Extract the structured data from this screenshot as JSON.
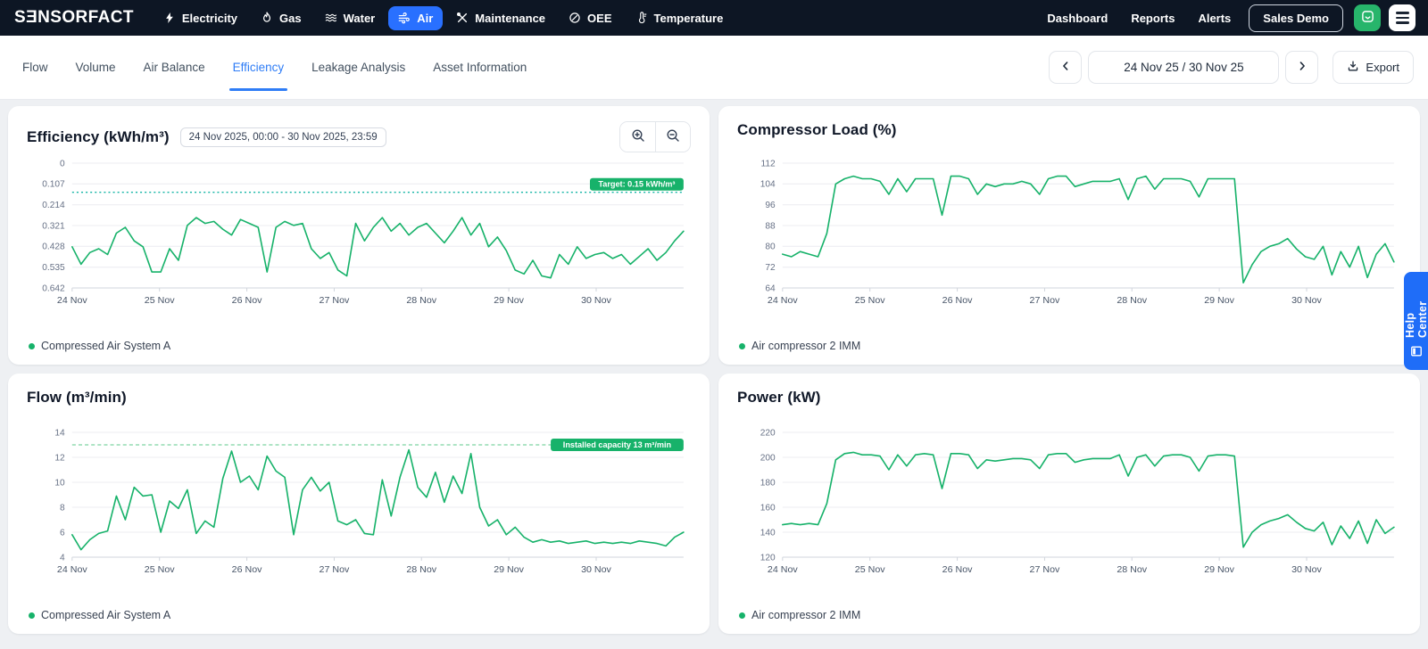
{
  "navbar": {
    "logo": "SƎNSORFACT",
    "items": [
      {
        "label": "Electricity",
        "icon": "bolt-icon",
        "active": false
      },
      {
        "label": "Gas",
        "icon": "flame-icon",
        "active": false
      },
      {
        "label": "Water",
        "icon": "waves-icon",
        "active": false
      },
      {
        "label": "Air",
        "icon": "wind-icon",
        "active": true
      },
      {
        "label": "Maintenance",
        "icon": "tools-icon",
        "active": false
      },
      {
        "label": "OEE",
        "icon": "gauge-icon",
        "active": false
      },
      {
        "label": "Temperature",
        "icon": "thermometer-icon",
        "active": false
      }
    ],
    "links": [
      "Dashboard",
      "Reports",
      "Alerts"
    ],
    "demo_button": "Sales Demo"
  },
  "tabs": [
    "Flow",
    "Volume",
    "Air Balance",
    "Efficiency",
    "Leakage Analysis",
    "Asset Information"
  ],
  "active_tab": "Efficiency",
  "toolbar": {
    "date_range": "24 Nov 25 / 30 Nov 25",
    "export_label": "Export"
  },
  "help_center": {
    "label": "Help Center"
  },
  "colors": {
    "navbar_bg": "#0d1624",
    "accent_blue": "#2970ff",
    "tab_blue": "#2f7df6",
    "series_green": "#17b26a",
    "target_teal": "#12b5a5",
    "capacity_green": "#93dcb2",
    "badge_green": "#17b26a",
    "chat_green": "#27b56b",
    "help_blue": "#1f6df8"
  },
  "chart_data": [
    {
      "type": "line",
      "title": "Efficiency (kWh/m³)",
      "time_range_label": "24 Nov 2025, 00:00 - 30 Nov 2025, 23:59",
      "ymin": 0,
      "ymax": 0.642,
      "inverted": true,
      "y_ticks": [
        0,
        0.107,
        0.214,
        0.321,
        0.428,
        0.535,
        0.642
      ],
      "x_labels": [
        "24 Nov",
        "25 Nov",
        "26 Nov",
        "27 Nov",
        "28 Nov",
        "29 Nov",
        "30 Nov"
      ],
      "x_span": 7,
      "legend_position": "bottom-left",
      "grid": true,
      "ref_line": {
        "value": 0.15,
        "label": "Target: 0.15 kWh/m³",
        "color": "#12b5a5",
        "dasharray": "2 3",
        "badge_dy": -16
      },
      "series": [
        {
          "name": "Compressed Air System A",
          "values": [
            0.43,
            0.52,
            0.46,
            0.44,
            0.47,
            0.36,
            0.33,
            0.4,
            0.43,
            0.56,
            0.56,
            0.44,
            0.5,
            0.32,
            0.28,
            0.31,
            0.3,
            0.34,
            0.37,
            0.29,
            0.31,
            0.33,
            0.56,
            0.33,
            0.3,
            0.32,
            0.31,
            0.44,
            0.49,
            0.46,
            0.55,
            0.58,
            0.31,
            0.4,
            0.33,
            0.28,
            0.35,
            0.31,
            0.37,
            0.33,
            0.31,
            0.36,
            0.41,
            0.35,
            0.28,
            0.37,
            0.31,
            0.43,
            0.38,
            0.45,
            0.55,
            0.57,
            0.5,
            0.58,
            0.59,
            0.47,
            0.52,
            0.43,
            0.49,
            0.47,
            0.46,
            0.49,
            0.47,
            0.52,
            0.48,
            0.44,
            0.5,
            0.46,
            0.4,
            0.35
          ]
        }
      ]
    },
    {
      "type": "line",
      "title": "Compressor Load (%)",
      "ymin": 64,
      "ymax": 112,
      "inverted": false,
      "y_ticks": [
        64,
        72,
        80,
        88,
        96,
        104,
        112
      ],
      "x_labels": [
        "24 Nov",
        "25 Nov",
        "26 Nov",
        "27 Nov",
        "28 Nov",
        "29 Nov",
        "30 Nov"
      ],
      "x_span": 7,
      "legend_position": "bottom-left",
      "grid": true,
      "series": [
        {
          "name": "Air compressor 2 IMM",
          "values": [
            77,
            76,
            78,
            77,
            76,
            85,
            104,
            106,
            107,
            106,
            106,
            105,
            100,
            106,
            101,
            106,
            106,
            106,
            92,
            107,
            107,
            106,
            100,
            104,
            103,
            104,
            104,
            105,
            104,
            100,
            106,
            107,
            107,
            103,
            104,
            105,
            105,
            105,
            106,
            98,
            106,
            107,
            102,
            106,
            106,
            106,
            105,
            99,
            106,
            106,
            106,
            106,
            66,
            73,
            78,
            80,
            81,
            83,
            79,
            76,
            75,
            80,
            69,
            78,
            72,
            80,
            68,
            77,
            81,
            74
          ]
        }
      ]
    },
    {
      "type": "line",
      "title": "Flow (m³/min)",
      "ymin": 4,
      "ymax": 14,
      "inverted": false,
      "y_ticks": [
        4,
        6,
        8,
        10,
        12,
        14
      ],
      "x_labels": [
        "24 Nov",
        "25 Nov",
        "26 Nov",
        "27 Nov",
        "28 Nov",
        "29 Nov",
        "30 Nov"
      ],
      "x_span": 7,
      "legend_position": "bottom-left",
      "grid": true,
      "ref_line": {
        "value": 13,
        "label": "Installed capacity 13 m³/min",
        "color": "#93dcb2",
        "dasharray": "4 3",
        "badge_dy": -7
      },
      "series": [
        {
          "name": "Compressed Air System A",
          "values": [
            5.8,
            4.6,
            5.4,
            5.9,
            6.1,
            8.9,
            7.0,
            9.6,
            8.9,
            9.0,
            6.0,
            8.5,
            7.9,
            9.4,
            5.9,
            6.9,
            6.4,
            10.3,
            12.5,
            10.0,
            10.5,
            9.4,
            12.1,
            10.9,
            10.4,
            5.8,
            9.4,
            10.4,
            9.3,
            10.0,
            6.9,
            6.6,
            7.0,
            5.9,
            5.8,
            10.2,
            7.3,
            10.4,
            12.6,
            9.6,
            8.8,
            10.8,
            8.4,
            10.5,
            9.1,
            12.3,
            8.0,
            6.5,
            7.0,
            5.8,
            6.4,
            5.6,
            5.2,
            5.4,
            5.2,
            5.3,
            5.1,
            5.2,
            5.3,
            5.1,
            5.2,
            5.1,
            5.2,
            5.1,
            5.3,
            5.2,
            5.1,
            4.9,
            5.6,
            6.0
          ]
        }
      ]
    },
    {
      "type": "line",
      "title": "Power (kW)",
      "ymin": 120,
      "ymax": 220,
      "inverted": false,
      "y_ticks": [
        120,
        140,
        160,
        180,
        200,
        220
      ],
      "x_labels": [
        "24 Nov",
        "25 Nov",
        "26 Nov",
        "27 Nov",
        "28 Nov",
        "29 Nov",
        "30 Nov"
      ],
      "x_span": 7,
      "legend_position": "bottom-left",
      "grid": true,
      "series": [
        {
          "name": "Air compressor 2 IMM",
          "values": [
            146,
            147,
            146,
            147,
            146,
            163,
            198,
            203,
            204,
            202,
            202,
            201,
            190,
            202,
            193,
            202,
            203,
            202,
            175,
            203,
            203,
            202,
            191,
            198,
            197,
            198,
            199,
            199,
            198,
            191,
            202,
            203,
            203,
            196,
            198,
            199,
            199,
            199,
            202,
            185,
            200,
            202,
            193,
            201,
            202,
            202,
            200,
            189,
            201,
            202,
            202,
            201,
            128,
            140,
            146,
            149,
            151,
            154,
            148,
            143,
            141,
            148,
            130,
            145,
            135,
            149,
            131,
            150,
            139,
            144
          ]
        }
      ]
    }
  ]
}
